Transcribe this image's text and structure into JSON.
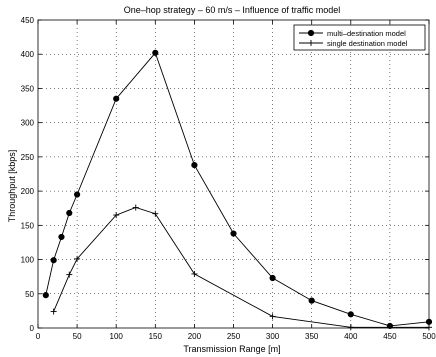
{
  "chart_data": {
    "type": "line",
    "title": "One–hop strategy – 60 m/s – Influence of traffic model",
    "xlabel": "Transmission Range [m]",
    "ylabel": "Throughput [kbps]",
    "xlim": [
      0,
      500
    ],
    "ylim": [
      0,
      450
    ],
    "x_ticks": [
      0,
      50,
      100,
      150,
      200,
      250,
      300,
      350,
      400,
      450,
      500
    ],
    "y_ticks": [
      0,
      50,
      100,
      150,
      200,
      250,
      300,
      350,
      400,
      450
    ],
    "x_tick_labels": [
      "0",
      "50",
      "100",
      "150",
      "200",
      "250",
      "300",
      "350",
      "400",
      "450",
      "500"
    ],
    "y_tick_labels": [
      "0",
      "50",
      "100",
      "150",
      "200",
      "250",
      "300",
      "350",
      "400",
      "450"
    ],
    "grid": true,
    "legend_position": "top-right",
    "series": [
      {
        "name": "multi–destination model",
        "marker": "dot",
        "color": "#000000",
        "points": [
          [
            10,
            48
          ],
          [
            20,
            99
          ],
          [
            30,
            133
          ],
          [
            40,
            168
          ],
          [
            50,
            195
          ],
          [
            100,
            335
          ],
          [
            150,
            402
          ],
          [
            200,
            238
          ],
          [
            250,
            138
          ],
          [
            300,
            73
          ],
          [
            350,
            40
          ],
          [
            400,
            20
          ],
          [
            450,
            3
          ],
          [
            500,
            9
          ]
        ]
      },
      {
        "name": "single destination model",
        "marker": "plus",
        "color": "#000000",
        "points": [
          [
            20,
            24
          ],
          [
            40,
            78
          ],
          [
            50,
            101
          ],
          [
            100,
            165
          ],
          [
            125,
            176
          ],
          [
            150,
            167
          ],
          [
            200,
            79
          ],
          [
            300,
            17
          ],
          [
            400,
            1
          ],
          [
            500,
            1
          ]
        ]
      }
    ]
  }
}
